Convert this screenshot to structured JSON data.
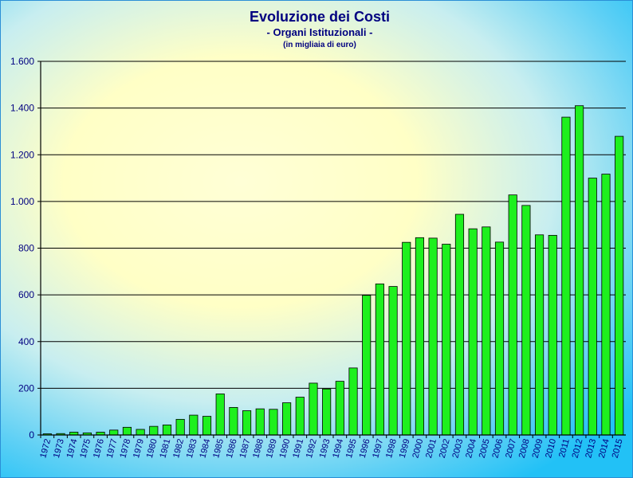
{
  "chart_data": {
    "type": "bar",
    "title": "Evoluzione dei Costi",
    "subtitle": "- Organi Istituzionali -",
    "unit_note": "(in migliaia di euro)",
    "categories": [
      "1972",
      "1973",
      "1974",
      "1975",
      "1976",
      "1977",
      "1978",
      "1979",
      "1980",
      "1981",
      "1982",
      "1983",
      "1984",
      "1985",
      "1986",
      "1987",
      "1988",
      "1989",
      "1990",
      "1991",
      "1992",
      "1993",
      "1994",
      "1995",
      "1996",
      "1997",
      "1998",
      "1999",
      "2000",
      "2001",
      "2002",
      "2003",
      "2004",
      "2005",
      "2006",
      "2007",
      "2008",
      "2009",
      "2010",
      "2011",
      "2012",
      "2013",
      "2014",
      "2015"
    ],
    "values": [
      5,
      6,
      12,
      9,
      12,
      21,
      33,
      24,
      37,
      43,
      67,
      85,
      80,
      176,
      118,
      104,
      112,
      110,
      138,
      162,
      222,
      197,
      230,
      287,
      598,
      647,
      636,
      825,
      845,
      843,
      817,
      945,
      883,
      891,
      826,
      1028,
      983,
      857,
      855,
      1361,
      1410,
      1100,
      1117,
      1279
    ],
    "ylim": [
      0,
      1600
    ],
    "yticks": [
      0,
      200,
      400,
      600,
      800,
      1000,
      1200,
      1400,
      1600
    ],
    "ytick_labels": [
      "0",
      "200",
      "400",
      "600",
      "800",
      "1.000",
      "1.200",
      "1.400",
      "1.600"
    ],
    "grid": true,
    "bar_color": "#1ef01e",
    "bar_border": "#000000",
    "title_color": "#000080"
  }
}
